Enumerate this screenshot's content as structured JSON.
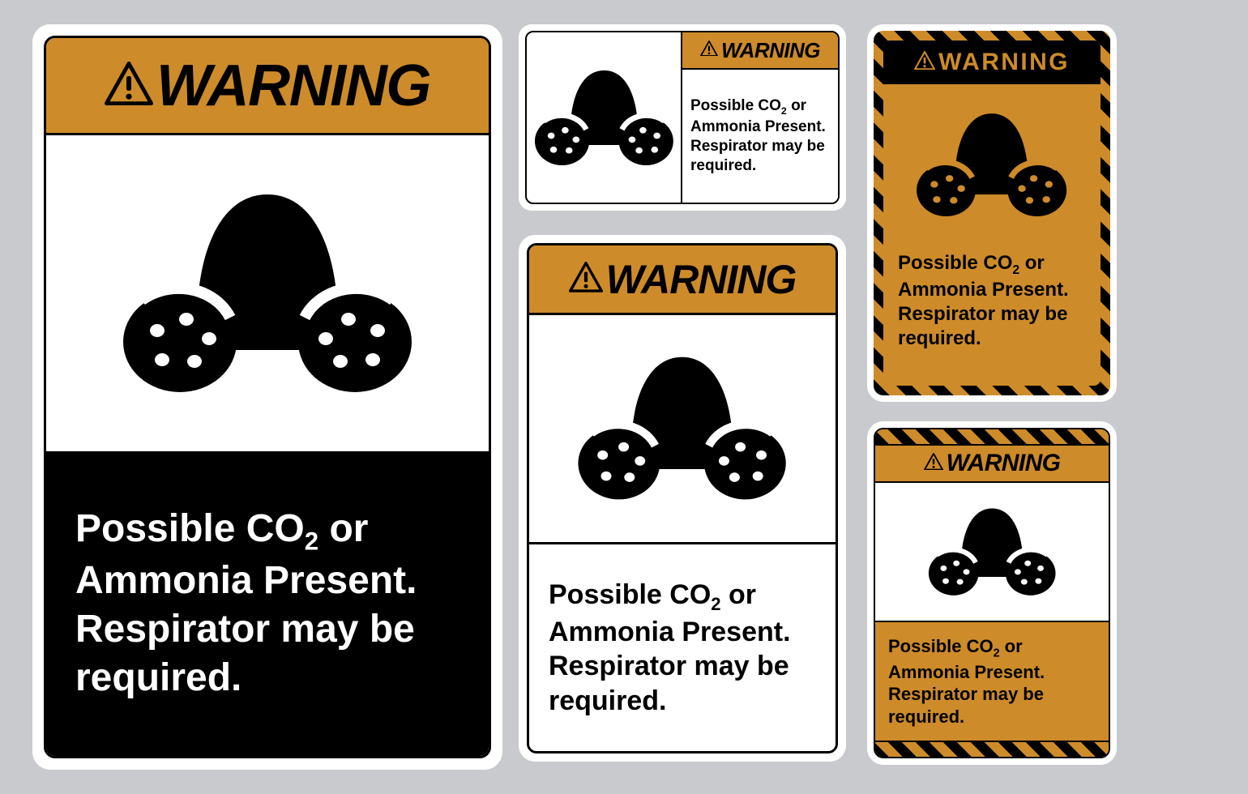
{
  "colors": {
    "orange": "#cd8b2a",
    "black": "#000000",
    "white": "#ffffff",
    "page_bg": "#c8cace"
  },
  "text": {
    "warning": "WARNING",
    "warning_spaced": "WARNING",
    "msg_line1": "Possible  CO",
    "msg_sub": "2",
    "msg_line1b": " or",
    "msg_line2": "Ammonia Present.",
    "msg_line3": "Respirator may be",
    "msg_line4": "required."
  },
  "signs": {
    "s1": {
      "header_bg": "orange",
      "header_fg": "black",
      "msg_bg": "black",
      "msg_fg": "white",
      "icon_scale": 1.0,
      "triangle_size": 60
    },
    "s2": {
      "header_bg": "orange",
      "header_fg": "black",
      "msg_bg": "white",
      "msg_fg": "black",
      "icon_scale": 0.48,
      "triangle_size": 22
    },
    "s3": {
      "header_bg": "orange",
      "header_fg": "black",
      "msg_bg": "white",
      "msg_fg": "black",
      "icon_scale": 0.72,
      "triangle_size": 42
    },
    "s4": {
      "body_bg": "orange",
      "header_bg": "black",
      "header_fg": "orange",
      "msg_bg": "orange",
      "msg_fg": "black",
      "stripe_angle": 45,
      "stripe_w": 14,
      "icon_scale": 0.52,
      "triangle_size": 26,
      "triangle_fill": "orange"
    },
    "s5": {
      "header_bg": "orange",
      "header_fg": "black",
      "msg_bg": "orange",
      "msg_fg": "black",
      "stripe_angle": 45,
      "stripe_w": 12,
      "icon_scale": 0.44,
      "triangle_size": 24
    }
  }
}
